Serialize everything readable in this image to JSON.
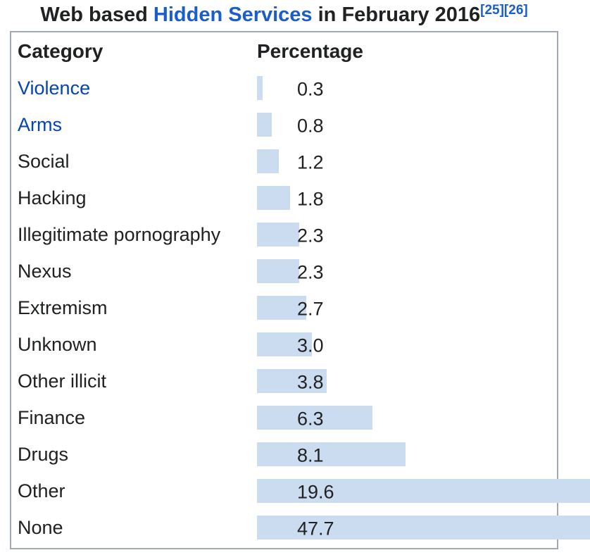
{
  "title": {
    "prefix": "Web based ",
    "link": "Hidden Services",
    "suffix": " in February 2016",
    "citations": [
      "[25]",
      "[26]"
    ]
  },
  "table": {
    "headers": {
      "category": "Category",
      "percentage": "Percentage"
    }
  },
  "chart_data": {
    "type": "bar",
    "orientation": "horizontal",
    "title": "Web based Hidden Services in February 2016",
    "columns": [
      "Category",
      "Percentage"
    ],
    "categories": [
      "Violence",
      "Arms",
      "Social",
      "Hacking",
      "Illegitimate pornography",
      "Nexus",
      "Extremism",
      "Unknown",
      "Other illicit",
      "Finance",
      "Drugs",
      "Other",
      "None"
    ],
    "values": [
      0.3,
      0.8,
      1.2,
      1.8,
      2.3,
      2.3,
      2.7,
      3.0,
      3.8,
      6.3,
      8.1,
      19.6,
      47.7
    ],
    "value_labels": [
      "0.3",
      "0.8",
      "1.2",
      "1.8",
      "2.3",
      "2.3",
      "2.7",
      "3.0",
      "3.8",
      "6.3",
      "8.1",
      "19.6",
      "47.7"
    ],
    "linked_categories": [
      "Violence",
      "Arms"
    ],
    "xlim": [
      0,
      50
    ],
    "legend": "none",
    "grid": "off"
  },
  "colors": {
    "text": "#202122",
    "bar": "#cbdcf0",
    "border": "#a2a9b1",
    "title_link": "#1b5ec7",
    "row_link": "#0645ad"
  }
}
